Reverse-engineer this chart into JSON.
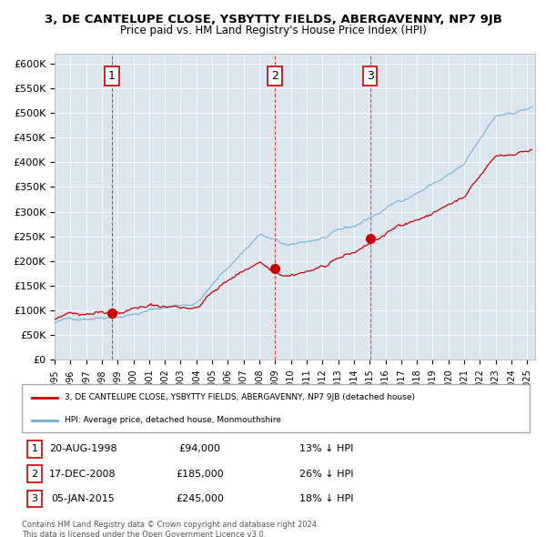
{
  "title": "3, DE CANTELUPE CLOSE, YSBYTTY FIELDS, ABERGAVENNY, NP7 9JB",
  "subtitle": "Price paid vs. HM Land Registry's House Price Index (HPI)",
  "background_color": "#dce6f0",
  "plot_bg_color": "#dce6f0",
  "hpi_color": "#6baed6",
  "price_color": "#cc0000",
  "sale_marker_color": "#cc0000",
  "dashed_line_color": "#cc0000",
  "ylim": [
    0,
    620000
  ],
  "yticks": [
    0,
    50000,
    100000,
    150000,
    200000,
    250000,
    300000,
    350000,
    400000,
    450000,
    500000,
    550000,
    600000
  ],
  "ytick_labels": [
    "£0",
    "£50K",
    "£100K",
    "£150K",
    "£200K",
    "£250K",
    "£300K",
    "£350K",
    "£400K",
    "£450K",
    "£500K",
    "£550K",
    "£600K"
  ],
  "sales": [
    {
      "date": 1998.64,
      "price": 94000,
      "label": "1"
    },
    {
      "date": 2008.97,
      "price": 185000,
      "label": "2"
    },
    {
      "date": 2015.02,
      "price": 245000,
      "label": "3"
    }
  ],
  "legend_entries": [
    "3, DE CANTELUPE CLOSE, YSBYTTY FIELDS, ABERGAVENNY, NP7 9JB (detached house)",
    "HPI: Average price, detached house, Monmouthshire"
  ],
  "table_rows": [
    {
      "num": "1",
      "date": "20-AUG-1998",
      "price": "£94,000",
      "hpi": "13% ↓ HPI"
    },
    {
      "num": "2",
      "date": "17-DEC-2008",
      "price": "£185,000",
      "hpi": "26% ↓ HPI"
    },
    {
      "num": "3",
      "date": "05-JAN-2015",
      "price": "£245,000",
      "hpi": "18% ↓ HPI"
    }
  ],
  "footer": "Contains HM Land Registry data © Crown copyright and database right 2024.\nThis data is licensed under the Open Government Licence v3.0.",
  "xlim_start": 1995.0,
  "xlim_end": 2025.5
}
